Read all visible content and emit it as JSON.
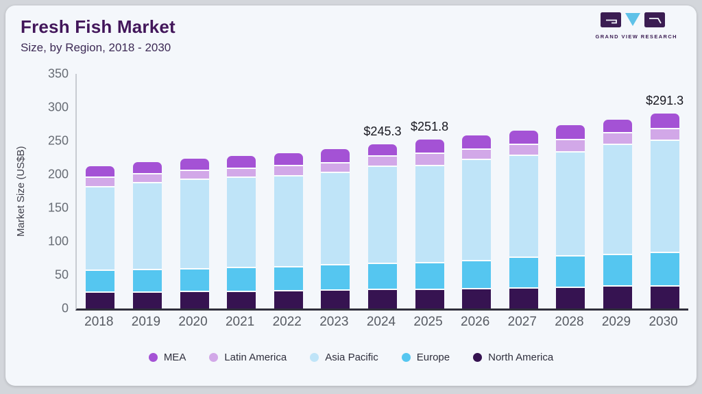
{
  "header": {
    "title": "Fresh Fish Market",
    "subtitle": "Size, by Region, 2018 - 2030",
    "brand": "GRAND VIEW RESEARCH"
  },
  "chart_data": {
    "type": "bar",
    "stacked": true,
    "title": "Fresh Fish Market Size, by Region, 2018 - 2030",
    "xlabel": "",
    "ylabel": "Market Size (US$B)",
    "ylim": [
      0,
      350
    ],
    "yticks": [
      0,
      50,
      100,
      150,
      200,
      250,
      300,
      350
    ],
    "grid": false,
    "legend_position": "bottom",
    "categories": [
      "2018",
      "2019",
      "2020",
      "2021",
      "2022",
      "2023",
      "2024",
      "2025",
      "2026",
      "2027",
      "2028",
      "2029",
      "2030"
    ],
    "series": [
      {
        "name": "MEA",
        "key": "mea",
        "color": "#a452d5",
        "values": [
          18.0,
          18.4,
          18.4,
          19.1,
          20.1,
          21.5,
          19.1,
          21.5,
          21.4,
          21.1,
          22.8,
          20.7,
          24.3
        ]
      },
      {
        "name": "Latin America",
        "key": "latin-america",
        "color": "#d2a8e8",
        "values": [
          14.3,
          12.9,
          13.6,
          13.6,
          14.6,
          14.2,
          15.3,
          17.7,
          14.7,
          16.3,
          18.0,
          16.7,
          17.0
        ]
      },
      {
        "name": "Asia Pacific",
        "key": "asia-pacific",
        "color": "#bfe4f8",
        "values": [
          124.5,
          130.0,
          133.0,
          134.7,
          136.1,
          138.5,
          144.9,
          145.3,
          151.3,
          152.4,
          155.4,
          164.3,
          167.3
        ]
      },
      {
        "name": "Europe",
        "key": "europe",
        "color": "#55c6f0",
        "values": [
          32.6,
          33.9,
          34.0,
          35.7,
          35.7,
          37.4,
          38.8,
          40.1,
          42.1,
          45.9,
          47.0,
          47.6,
          49.7
        ]
      },
      {
        "name": "North America",
        "key": "north-america",
        "color": "#361351",
        "values": [
          23.2,
          23.2,
          24.5,
          24.5,
          25.5,
          26.5,
          27.2,
          27.2,
          28.3,
          29.6,
          30.6,
          32.3,
          33.0
        ]
      }
    ],
    "bar_total_labels": [
      "",
      "",
      "",
      "",
      "",
      "",
      "$245.3",
      "$251.8",
      "",
      "",
      "",
      "",
      "$291.3"
    ]
  },
  "colors": {
    "card_bg": "#f4f7fb",
    "frame_bg": "#d3d6db",
    "y_axis_line": "#c8ccd2",
    "x_axis_line": "#2f2e3b",
    "title_text": "#42165a",
    "subtitle_text": "#3d2a55",
    "tick_text": "#676c74",
    "total_label_text": "#17171f",
    "legend_text": "#2e2e3c",
    "brand_purple": "#3b1d52",
    "brand_blue": "#5ec1e8",
    "segment_gap": "#fbfdfe"
  }
}
